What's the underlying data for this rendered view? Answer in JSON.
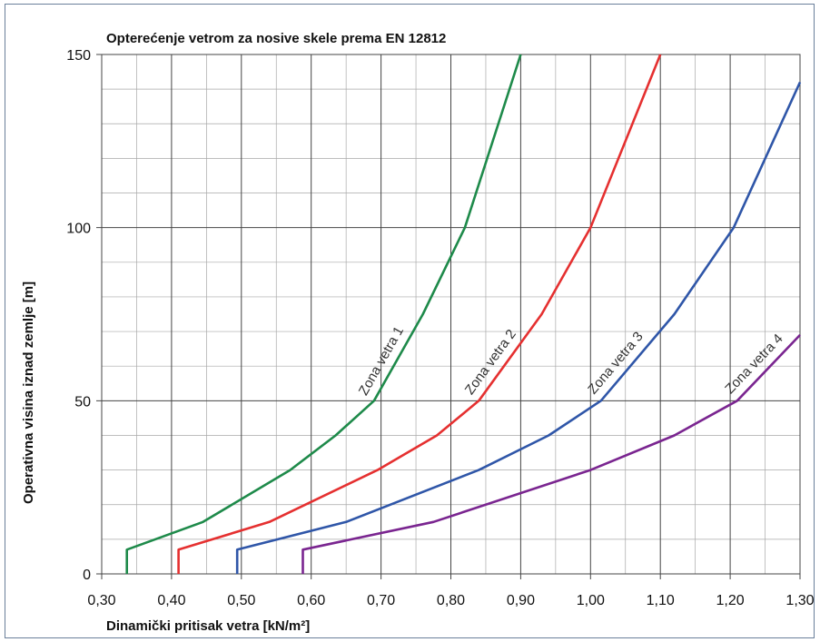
{
  "chart_data": {
    "type": "line",
    "title": "Opterećenje vetrom za nosive skele prema EN 12812",
    "xlabel": "Dinamički pritisak vetra [kN/m²]",
    "ylabel": "Operativna visina iznad zemlje [m]",
    "xlim": [
      0.3,
      1.3
    ],
    "ylim": [
      0,
      150
    ],
    "x_ticks": [
      "0,30",
      "0,40",
      "0,50",
      "0,60",
      "0,70",
      "0,80",
      "0,90",
      "1,00",
      "1,10",
      "1,20",
      "1,30"
    ],
    "y_ticks": [
      "0",
      "50",
      "100",
      "150"
    ],
    "grid": true,
    "series": [
      {
        "name": "Zona vetra 1",
        "color": "#1e8a4a",
        "points": [
          [
            0.336,
            0
          ],
          [
            0.336,
            7
          ],
          [
            0.445,
            15
          ],
          [
            0.57,
            30
          ],
          [
            0.635,
            40
          ],
          [
            0.69,
            50
          ],
          [
            0.76,
            75
          ],
          [
            0.82,
            100
          ],
          [
            0.9,
            150
          ]
        ]
      },
      {
        "name": "Zona vetra 2",
        "color": "#e53030",
        "points": [
          [
            0.41,
            0
          ],
          [
            0.41,
            7
          ],
          [
            0.54,
            15
          ],
          [
            0.695,
            30
          ],
          [
            0.78,
            40
          ],
          [
            0.84,
            50
          ],
          [
            0.93,
            75
          ],
          [
            1.0,
            100
          ],
          [
            1.1,
            150
          ]
        ]
      },
      {
        "name": "Zona vetra 3",
        "color": "#2f56a8",
        "points": [
          [
            0.494,
            0
          ],
          [
            0.494,
            7
          ],
          [
            0.65,
            15
          ],
          [
            0.84,
            30
          ],
          [
            0.94,
            40
          ],
          [
            1.015,
            50
          ],
          [
            1.12,
            75
          ],
          [
            1.205,
            100
          ],
          [
            1.3,
            142
          ]
        ]
      },
      {
        "name": "Zona vetra 4",
        "color": "#7a2590",
        "points": [
          [
            0.588,
            0
          ],
          [
            0.588,
            7
          ],
          [
            0.775,
            15
          ],
          [
            1.0,
            30
          ],
          [
            1.12,
            40
          ],
          [
            1.21,
            50
          ],
          [
            1.3,
            69
          ]
        ]
      }
    ]
  }
}
